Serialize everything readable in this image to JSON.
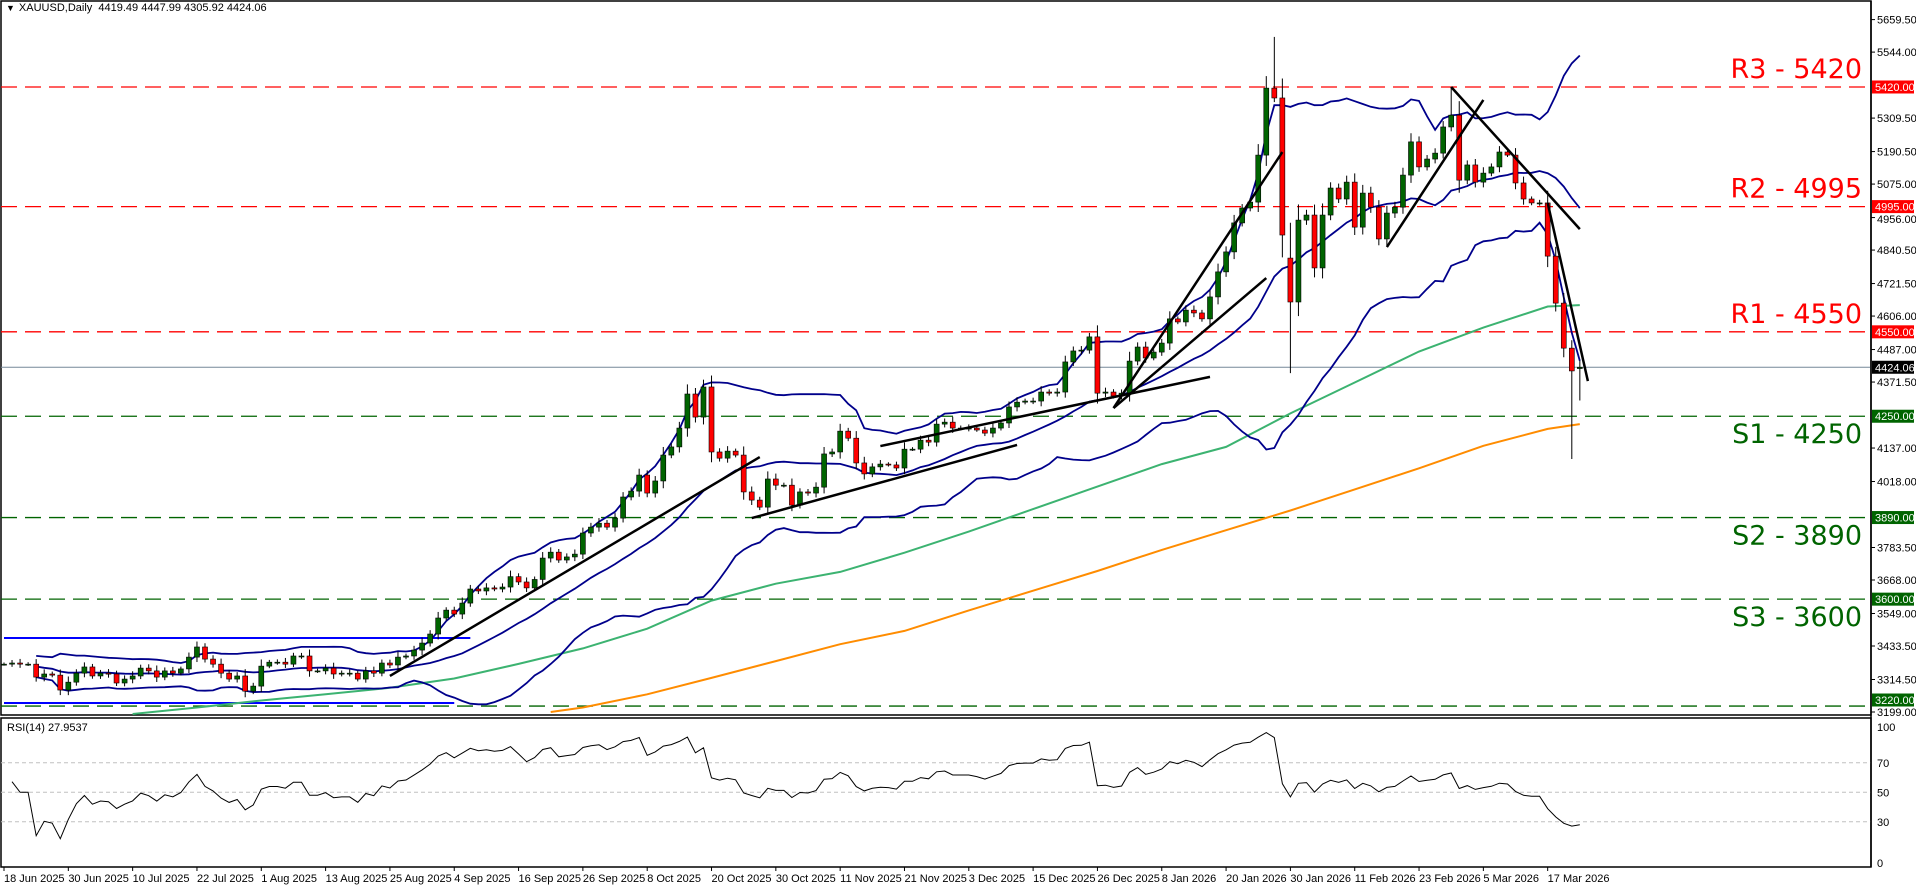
{
  "header": {
    "symbol_timeframe": "XAUUSD,Daily",
    "ohlc_readout": "4419.49 4447.99 4305.92 4424.06"
  },
  "chart_data": {
    "type": "candlestick",
    "symbol": "XAUUSD",
    "timeframe": "Daily",
    "first_date": "18 Jun 2025",
    "close": [
      3369,
      3373,
      3369,
      3369,
      3323,
      3334,
      3330,
      3277,
      3305,
      3337,
      3359,
      3327,
      3337,
      3334,
      3302,
      3316,
      3327,
      3355,
      3345,
      3323,
      3345,
      3337,
      3352,
      3394,
      3430,
      3387,
      3369,
      3337,
      3316,
      3327,
      3273,
      3291,
      3362,
      3376,
      3376,
      3369,
      3398,
      3398,
      3345,
      3345,
      3355,
      3334,
      3337,
      3337,
      3316,
      3345,
      3337,
      3373,
      3366,
      3394,
      3398,
      3419,
      3444,
      3476,
      3533,
      3561,
      3547,
      3586,
      3636,
      3629,
      3640,
      3636,
      3643,
      3680,
      3661,
      3640,
      3670,
      3746,
      3767,
      3739,
      3750,
      3760,
      3835,
      3856,
      3870,
      3856,
      3888,
      3963,
      3984,
      4041,
      3977,
      4020,
      4112,
      4141,
      4208,
      4329,
      4247,
      4354,
      4123,
      4101,
      4126,
      4112,
      3981,
      3952,
      3927,
      4027,
      4005,
      4005,
      3934,
      3981,
      3977,
      3998,
      4116,
      4123,
      4197,
      4172,
      4084,
      4045,
      4070,
      4080,
      4077,
      4066,
      4133,
      4133,
      4165,
      4158,
      4222,
      4229,
      4208,
      4208,
      4208,
      4201,
      4190,
      4208,
      4226,
      4283,
      4300,
      4304,
      4304,
      4336,
      4332,
      4336,
      4443,
      4482,
      4485,
      4532,
      4332,
      4336,
      4322,
      4332,
      4446,
      4496,
      4457,
      4478,
      4510,
      4596,
      4585,
      4627,
      4617,
      4596,
      4674,
      4763,
      4834,
      4937,
      4990,
      5011,
      5178,
      5416,
      5381,
      4894,
      4656,
      4947,
      4965,
      4777,
      4965,
      5061,
      5022,
      5082,
      4922,
      5043,
      4993,
      4880,
      4972,
      4993,
      5107,
      5225,
      5136,
      5164,
      5185,
      5278,
      5320,
      5089,
      5143,
      5082,
      5114,
      5136,
      5189,
      5178,
      5079,
      5022,
      5008,
      5008,
      4819,
      4652,
      4492,
      4411,
      4424.06
    ],
    "last_bar": {
      "date": "23 Mar 2026",
      "open": 4419.49,
      "high": 4447.99,
      "low": 4305.92,
      "close": 4424.06
    },
    "extremes": {
      "17 Oct 2025": {
        "high": 4380
      },
      "28 Jan 2026": {
        "high": 5598
      },
      "29 Jan 2026": {
        "high": 5450
      },
      "30 Jan 2026": {
        "open": 4812,
        "low": 4403
      },
      "27 Feb 2026": {
        "high": 5420
      },
      "20 Mar 2026": {
        "low": 4098
      }
    },
    "y_axis": {
      "range": [
        3192,
        5729
      ],
      "ticks": [
        "5659.50",
        "5544.00",
        "5309.50",
        "5190.50",
        "5075.00",
        "4956.00",
        "4840.50",
        "4721.50",
        "4606.00",
        "4487.00",
        "4371.50",
        "4137.00",
        "4018.00",
        "3783.50",
        "3668.00",
        "3549.00",
        "3433.50",
        "3314.50",
        "3199.00"
      ]
    },
    "x_axis": {
      "ticks": [
        "18 Jun 2025",
        "30 Jun 2025",
        "10 Jul 2025",
        "22 Jul 2025",
        "1 Aug 2025",
        "13 Aug 2025",
        "25 Aug 2025",
        "4 Sep 2025",
        "16 Sep 2025",
        "26 Sep 2025",
        "8 Oct 2025",
        "20 Oct 2025",
        "30 Oct 2025",
        "11 Nov 2025",
        "21 Nov 2025",
        "3 Dec 2025",
        "15 Dec 2025",
        "26 Dec 2025",
        "8 Jan 2026",
        "20 Jan 2026",
        "30 Jan 2026",
        "11 Feb 2026",
        "23 Feb 2026",
        "5 Mar 2026",
        "17 Mar 2026"
      ]
    },
    "levels": [
      {
        "label": "R3 - 5420",
        "value": 5420,
        "tag": "5420.00",
        "kind": "resistance",
        "color": "#ff0000"
      },
      {
        "label": "R2 - 4995",
        "value": 4995,
        "tag": "4995.00",
        "kind": "resistance",
        "color": "#ff0000"
      },
      {
        "label": "R1 - 4550",
        "value": 4550,
        "tag": "4550.00",
        "kind": "resistance",
        "color": "#ff0000"
      },
      {
        "label": "S1 - 4250",
        "value": 4250,
        "tag": "4250.00",
        "kind": "support",
        "color": "#006400"
      },
      {
        "label": "S2 - 3890",
        "value": 3890,
        "tag": "3890.00",
        "kind": "support",
        "color": "#006400"
      },
      {
        "label": "S3 - 3600",
        "value": 3600,
        "tag": "3600.00",
        "kind": "support",
        "color": "#006400"
      },
      {
        "label": "",
        "value": 3220,
        "tag": "3220.00",
        "kind": "support",
        "color": "#006400"
      }
    ],
    "current_price": {
      "value": 4424.06,
      "tag": "4424.06",
      "color": "#778899"
    },
    "range_box": {
      "upper": 3462,
      "lower": 3231,
      "start": "18 Jun 2025",
      "upper_end": "8 Sep 2025",
      "lower_end": "4 Sep 2025",
      "color": "#0000ff"
    },
    "trendlines": [
      [
        [
          "25 Aug 2025",
          3327
        ],
        [
          "28 Oct 2025",
          4105
        ]
      ],
      [
        [
          "27 Oct 2025",
          3888
        ],
        [
          "11 Dec 2025",
          4148
        ]
      ],
      [
        [
          "18 Nov 2025",
          4144
        ],
        [
          "16 Jan 2026",
          4390
        ]
      ],
      [
        [
          "30 Dec 2025",
          4279
        ],
        [
          "27 Jan 2026",
          4741
        ]
      ],
      [
        [
          "30 Dec 2025",
          4279
        ],
        [
          "29 Jan 2026",
          5189
        ]
      ],
      [
        [
          "17 Feb 2026",
          4851
        ],
        [
          "5 Mar 2026",
          5374
        ]
      ],
      [
        [
          "27 Feb 2026",
          5420
        ],
        [
          "23 Mar 2026",
          4915
        ]
      ],
      [
        [
          "17 Mar 2026",
          5008
        ],
        [
          "24 Mar 2026",
          4375
        ]
      ]
    ],
    "bollinger": {
      "period": 20,
      "deviations": 2,
      "color": "#00008b"
    },
    "ma_green": {
      "color": "#3cb371",
      "points": [
        [
          "10 Jul 2025",
          3192
        ],
        [
          "22 Jul 2025",
          3215
        ],
        [
          "1 Aug 2025",
          3240
        ],
        [
          "13 Aug 2025",
          3262
        ],
        [
          "25 Aug 2025",
          3285
        ],
        [
          "4 Sep 2025",
          3318
        ],
        [
          "16 Sep 2025",
          3370
        ],
        [
          "26 Sep 2025",
          3425
        ],
        [
          "8 Oct 2025",
          3495
        ],
        [
          "20 Oct 2025",
          3595
        ],
        [
          "30 Oct 2025",
          3655
        ],
        [
          "11 Nov 2025",
          3697
        ],
        [
          "21 Nov 2025",
          3765
        ],
        [
          "3 Dec 2025",
          3840
        ],
        [
          "15 Dec 2025",
          3920
        ],
        [
          "26 Dec 2025",
          4000
        ],
        [
          "8 Jan 2026",
          4080
        ],
        [
          "20 Jan 2026",
          4141
        ],
        [
          "30 Jan 2026",
          4260
        ],
        [
          "11 Feb 2026",
          4370
        ],
        [
          "23 Feb 2026",
          4480
        ],
        [
          "5 Mar 2026",
          4565
        ],
        [
          "17 Mar 2026",
          4640
        ],
        [
          "23 Mar 2026",
          4645
        ]
      ]
    },
    "ma_orange": {
      "color": "#ff8c00",
      "points": [
        [
          "22 Sep 2025",
          3199
        ],
        [
          "26 Sep 2025",
          3215
        ],
        [
          "8 Oct 2025",
          3262
        ],
        [
          "20 Oct 2025",
          3320
        ],
        [
          "30 Oct 2025",
          3380
        ],
        [
          "11 Nov 2025",
          3440
        ],
        [
          "21 Nov 2025",
          3487
        ],
        [
          "3 Dec 2025",
          3560
        ],
        [
          "15 Dec 2025",
          3630
        ],
        [
          "26 Dec 2025",
          3700
        ],
        [
          "8 Jan 2026",
          3775
        ],
        [
          "20 Jan 2026",
          3845
        ],
        [
          "30 Jan 2026",
          3915
        ],
        [
          "11 Feb 2026",
          3990
        ],
        [
          "23 Feb 2026",
          4065
        ],
        [
          "5 Mar 2026",
          4145
        ],
        [
          "17 Mar 2026",
          4205
        ],
        [
          "23 Mar 2026",
          4222
        ]
      ]
    },
    "rsi": {
      "label": "RSI(14) 27.9537",
      "period": 14,
      "value": 27.9537,
      "range": [
        0,
        100
      ],
      "levels": [
        70,
        50,
        30
      ],
      "ticks": [
        "100",
        "70",
        "50",
        "30",
        "0"
      ]
    },
    "colors": {
      "bull": "#006400",
      "bear": "#ff0000",
      "wick": "#000000",
      "grid_level": "#c0c0c0",
      "rsi_line": "#000000"
    }
  }
}
